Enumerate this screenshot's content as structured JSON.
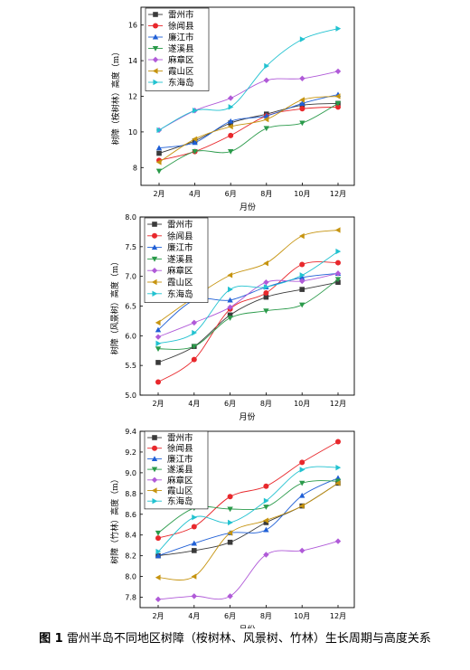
{
  "caption": {
    "label": "图 1",
    "text": "雷州半岛不同地区树障（桉树林、风景树、竹林）生长周期与高度关系"
  },
  "colors": [
    "#3a3a3a",
    "#e8282c",
    "#1f5fd6",
    "#2a9a4a",
    "#b05ad8",
    "#c69410",
    "#22c2d0"
  ],
  "chart_data": [
    {
      "type": "line",
      "categories": [
        "2月",
        "4月",
        "6月",
        "8月",
        "10月",
        "12月"
      ],
      "xlabel": "月份",
      "ylabel": "树障（桉树林）高度（m）",
      "ylim": [
        7,
        17
      ],
      "yticks": [
        8,
        10,
        12,
        14,
        16
      ],
      "legend": "top-left",
      "series": [
        {
          "name": "雷州市",
          "marker": "square",
          "values": [
            8.8,
            9.5,
            10.5,
            11.0,
            11.5,
            11.6
          ]
        },
        {
          "name": "徐闻县",
          "marker": "circle",
          "values": [
            8.4,
            8.9,
            9.8,
            10.9,
            11.3,
            11.4
          ]
        },
        {
          "name": "廉江市",
          "marker": "triangle-up",
          "values": [
            9.1,
            9.4,
            10.6,
            10.9,
            11.6,
            12.1
          ]
        },
        {
          "name": "遂溪县",
          "marker": "triangle-down",
          "values": [
            7.8,
            8.9,
            8.9,
            10.2,
            10.5,
            11.6
          ]
        },
        {
          "name": "麻章区",
          "marker": "diamond",
          "values": [
            10.1,
            11.2,
            11.9,
            12.9,
            13.0,
            13.4
          ]
        },
        {
          "name": "霞山区",
          "marker": "triangle-left",
          "values": [
            8.3,
            9.6,
            10.3,
            10.7,
            11.8,
            12.0
          ]
        },
        {
          "name": "东海岛",
          "marker": "triangle-right",
          "values": [
            10.1,
            11.2,
            11.4,
            13.7,
            15.2,
            15.8
          ]
        }
      ]
    },
    {
      "type": "line",
      "categories": [
        "2月",
        "4月",
        "6月",
        "8月",
        "10月",
        "12月"
      ],
      "xlabel": "月份",
      "ylabel": "树障（风景树）高度（m）",
      "ylim": [
        5.0,
        8.0
      ],
      "yticks": [
        5.0,
        5.5,
        6.0,
        6.5,
        7.0,
        7.5,
        8.0
      ],
      "legend": "top-left",
      "series": [
        {
          "name": "雷州市",
          "marker": "square",
          "values": [
            5.55,
            5.82,
            6.35,
            6.65,
            6.78,
            6.9
          ]
        },
        {
          "name": "徐闻县",
          "marker": "circle",
          "values": [
            5.22,
            5.6,
            6.45,
            6.72,
            7.2,
            7.23
          ]
        },
        {
          "name": "廉江市",
          "marker": "triangle-up",
          "values": [
            6.1,
            6.6,
            6.6,
            6.82,
            6.98,
            7.05
          ]
        },
        {
          "name": "遂溪县",
          "marker": "triangle-down",
          "values": [
            5.78,
            5.82,
            6.3,
            6.42,
            6.52,
            6.95
          ]
        },
        {
          "name": "麻章区",
          "marker": "diamond",
          "values": [
            5.98,
            6.22,
            6.48,
            6.9,
            6.92,
            7.05
          ]
        },
        {
          "name": "霞山区",
          "marker": "triangle-left",
          "values": [
            6.22,
            6.65,
            7.02,
            7.22,
            7.68,
            7.78
          ]
        },
        {
          "name": "东海岛",
          "marker": "triangle-right",
          "values": [
            5.87,
            6.05,
            6.78,
            6.82,
            7.02,
            7.42
          ]
        }
      ]
    },
    {
      "type": "line",
      "categories": [
        "2月",
        "4月",
        "6月",
        "8月",
        "10月",
        "12月"
      ],
      "xlabel": "月份",
      "ylabel": "树障（竹林）高度（m）",
      "ylim": [
        7.7,
        9.4
      ],
      "yticks": [
        7.8,
        8.0,
        8.2,
        8.4,
        8.6,
        8.8,
        9.0,
        9.2,
        9.4
      ],
      "legend": "top-left",
      "series": [
        {
          "name": "雷州市",
          "marker": "square",
          "values": [
            8.2,
            8.25,
            8.33,
            8.52,
            8.68,
            8.9
          ]
        },
        {
          "name": "徐闻县",
          "marker": "circle",
          "values": [
            8.37,
            8.48,
            8.77,
            8.87,
            9.1,
            9.3
          ]
        },
        {
          "name": "廉江市",
          "marker": "triangle-up",
          "values": [
            8.2,
            8.32,
            8.42,
            8.45,
            8.78,
            8.95
          ]
        },
        {
          "name": "遂溪县",
          "marker": "triangle-down",
          "values": [
            8.42,
            8.66,
            8.65,
            8.67,
            8.9,
            8.92
          ]
        },
        {
          "name": "麻章区",
          "marker": "diamond",
          "values": [
            7.78,
            7.81,
            7.81,
            8.21,
            8.25,
            8.34
          ]
        },
        {
          "name": "霞山区",
          "marker": "triangle-left",
          "values": [
            7.99,
            8.0,
            8.42,
            8.54,
            8.68,
            8.9
          ]
        },
        {
          "name": "东海岛",
          "marker": "triangle-right",
          "values": [
            8.24,
            8.57,
            8.52,
            8.73,
            9.03,
            9.05
          ]
        }
      ]
    }
  ]
}
